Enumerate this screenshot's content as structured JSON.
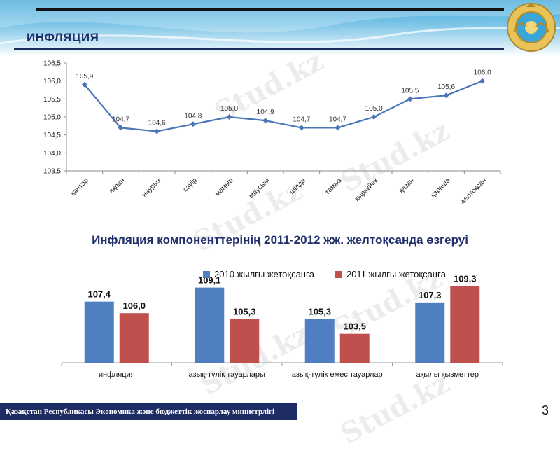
{
  "slide": {
    "title": "ИНФЛЯЦИЯ",
    "footer": "Қазақстан Республикасы Экономика және бюджеттік жоспарлау министрлігі",
    "page_number": "3",
    "watermark": "Stud.kz"
  },
  "colors": {
    "line": "#4a76b8",
    "series_2010": "#4f7fc1",
    "series_2011": "#c0504d",
    "header_navy": "#1e2f6b"
  },
  "chart_data": [
    {
      "type": "line",
      "categories": [
        "қантар",
        "ақпан",
        "наурыз",
        "сәуір",
        "мамыр",
        "маусым",
        "шілде",
        "тамыз",
        "қыркүйек",
        "қазан",
        "қараша",
        "желтоқсан"
      ],
      "values": [
        105.9,
        104.7,
        104.6,
        104.8,
        105.0,
        104.9,
        104.7,
        104.7,
        105.0,
        105.5,
        105.6,
        106.0
      ],
      "data_labels": [
        "105,9",
        "104,7",
        "104,6",
        "104,8",
        "105,0",
        "104,9",
        "104,7",
        "104,7",
        "105,0",
        "105,5",
        "105,6",
        "106,0"
      ],
      "yticks": [
        103.5,
        104.0,
        104.5,
        105.0,
        105.5,
        106.0,
        106.5
      ],
      "ytick_labels": [
        "103,5",
        "104,0",
        "104,5",
        "105,0",
        "105,5",
        "106,0",
        "106,5"
      ],
      "ylim": [
        103.5,
        106.5
      ],
      "grid": false,
      "marker": "diamond"
    },
    {
      "type": "bar",
      "title": "Инфляция компоненттерінің 2011-2012 жж. желтоқсанда өзгеруі",
      "categories": [
        "инфляция",
        "азық-түлік тауарлары",
        "азық-түлік емес тауарлар",
        "ақылы қызметтер"
      ],
      "series": [
        {
          "name": "2010 жылғы жетоқсанға",
          "values": [
            107.4,
            109.1,
            105.3,
            107.3
          ],
          "labels": [
            "107,4",
            "109,1",
            "105,3",
            "107,3"
          ]
        },
        {
          "name": "2011 жылғы жетоқсанға",
          "values": [
            106.0,
            105.3,
            103.5,
            109.3
          ],
          "labels": [
            "106,0",
            "105,3",
            "103,5",
            "109,3"
          ]
        }
      ],
      "ylim": [
        100,
        110
      ],
      "legend": "top"
    }
  ]
}
